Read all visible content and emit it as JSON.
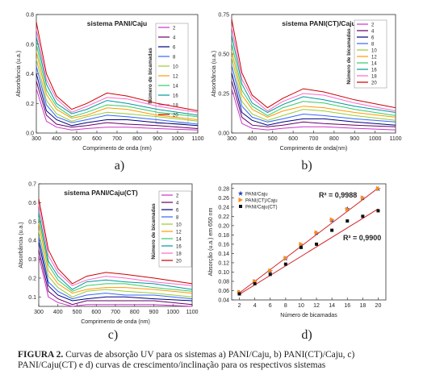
{
  "chart_data": [
    {
      "type": "line",
      "title": "sistema PANI/Caju",
      "panel_label": "a)",
      "xlabel": "Comprimento de onda (nm)",
      "ylabel": "Absorbância (u.a.)",
      "legend_title": "Número de bicamadas",
      "x": [
        300,
        350,
        400,
        475,
        550,
        650,
        750,
        900,
        1100
      ],
      "xlim": [
        300,
        1100
      ],
      "xticks": [
        300,
        400,
        500,
        600,
        700,
        800,
        900,
        1000,
        1100
      ],
      "ylim": [
        0,
        0.8
      ],
      "yticks": [
        {
          "value": 0,
          "label": "0.0"
        },
        0.2,
        0.4,
        0.6,
        0.8
      ],
      "series": [
        {
          "name": "2",
          "color": "#cc33cc",
          "values": [
            0.3,
            0.08,
            0.04,
            0.02,
            0.03,
            0.04,
            0.04,
            0.03,
            0.02
          ]
        },
        {
          "name": "4",
          "color": "#660066",
          "values": [
            0.35,
            0.12,
            0.06,
            0.04,
            0.05,
            0.07,
            0.06,
            0.05,
            0.03
          ]
        },
        {
          "name": "6",
          "color": "#000080",
          "values": [
            0.4,
            0.15,
            0.09,
            0.05,
            0.07,
            0.09,
            0.09,
            0.07,
            0.05
          ]
        },
        {
          "name": "8",
          "color": "#3366ff",
          "values": [
            0.45,
            0.19,
            0.11,
            0.07,
            0.09,
            0.12,
            0.11,
            0.09,
            0.06
          ]
        },
        {
          "name": "10",
          "color": "#99cc33",
          "values": [
            0.5,
            0.22,
            0.13,
            0.08,
            0.11,
            0.14,
            0.13,
            0.11,
            0.08
          ]
        },
        {
          "name": "12",
          "color": "#ff9900",
          "values": [
            0.55,
            0.26,
            0.16,
            0.1,
            0.12,
            0.17,
            0.16,
            0.12,
            0.09
          ]
        },
        {
          "name": "14",
          "color": "#33cc66",
          "values": [
            0.6,
            0.29,
            0.18,
            0.11,
            0.14,
            0.19,
            0.18,
            0.14,
            0.11
          ]
        },
        {
          "name": "16",
          "color": "#009999",
          "values": [
            0.65,
            0.33,
            0.2,
            0.13,
            0.16,
            0.22,
            0.2,
            0.16,
            0.12
          ]
        },
        {
          "name": "18",
          "color": "#ff66cc",
          "values": [
            0.7,
            0.36,
            0.23,
            0.14,
            0.18,
            0.24,
            0.23,
            0.18,
            0.14
          ]
        },
        {
          "name": "20",
          "color": "#cc0000",
          "values": [
            0.75,
            0.4,
            0.25,
            0.16,
            0.2,
            0.27,
            0.25,
            0.2,
            0.15
          ]
        }
      ]
    },
    {
      "type": "line",
      "title": "sistema PANI(CT)/Caju",
      "panel_label": "b)",
      "xlabel": "Comprimento de onda(nm)",
      "ylabel": "Absorbância (u.a.)",
      "legend_title": "Número de bicamadas",
      "x": [
        300,
        350,
        400,
        475,
        550,
        650,
        750,
        900,
        1100
      ],
      "xlim": [
        300,
        1100
      ],
      "xticks": [
        300,
        400,
        500,
        600,
        700,
        800,
        900,
        1000,
        1100
      ],
      "ylim": [
        0,
        0.75
      ],
      "yticks": [
        {
          "value": 0,
          "label": "0.00"
        },
        0.25,
        {
          "value": 0.5,
          "label": "0.50"
        },
        0.75
      ],
      "series": [
        {
          "name": "2",
          "color": "#cc33cc",
          "values": [
            0.28,
            0.06,
            0.03,
            0.02,
            0.03,
            0.04,
            0.04,
            0.03,
            0.02
          ]
        },
        {
          "name": "4",
          "color": "#660066",
          "values": [
            0.33,
            0.1,
            0.05,
            0.04,
            0.05,
            0.07,
            0.06,
            0.05,
            0.04
          ]
        },
        {
          "name": "6",
          "color": "#000080",
          "values": [
            0.38,
            0.13,
            0.08,
            0.05,
            0.07,
            0.09,
            0.09,
            0.07,
            0.05
          ]
        },
        {
          "name": "8",
          "color": "#3366ff",
          "values": [
            0.43,
            0.17,
            0.1,
            0.07,
            0.09,
            0.12,
            0.11,
            0.09,
            0.07
          ]
        },
        {
          "name": "10",
          "color": "#99cc33",
          "values": [
            0.48,
            0.2,
            0.12,
            0.08,
            0.11,
            0.15,
            0.14,
            0.11,
            0.08
          ]
        },
        {
          "name": "12",
          "color": "#ff9900",
          "values": [
            0.52,
            0.24,
            0.15,
            0.1,
            0.14,
            0.17,
            0.16,
            0.13,
            0.1
          ]
        },
        {
          "name": "14",
          "color": "#33cc66",
          "values": [
            0.57,
            0.27,
            0.17,
            0.11,
            0.16,
            0.2,
            0.19,
            0.15,
            0.11
          ]
        },
        {
          "name": "16",
          "color": "#009999",
          "values": [
            0.62,
            0.31,
            0.19,
            0.13,
            0.18,
            0.23,
            0.21,
            0.17,
            0.13
          ]
        },
        {
          "name": "18",
          "color": "#ff66cc",
          "values": [
            0.67,
            0.34,
            0.22,
            0.14,
            0.2,
            0.25,
            0.24,
            0.19,
            0.14
          ]
        },
        {
          "name": "20",
          "color": "#cc0000",
          "values": [
            0.72,
            0.38,
            0.24,
            0.16,
            0.22,
            0.28,
            0.26,
            0.21,
            0.16
          ]
        }
      ]
    },
    {
      "type": "line",
      "title": "sistema PANI/Caju(CT)",
      "panel_label": "c)",
      "xlabel": "Comprimento de onda (nm)",
      "ylabel": "Absorbância (u.a.)",
      "legend_title": "Número de bicamadas",
      "x": [
        300,
        350,
        400,
        475,
        550,
        650,
        750,
        900,
        1100
      ],
      "xlim": [
        300,
        1100
      ],
      "xticks": [
        300,
        400,
        500,
        600,
        700,
        800,
        900,
        1000,
        1100
      ],
      "ylim": [
        0.05,
        0.7
      ],
      "yticks": [
        0.1,
        0.2,
        0.3,
        0.4,
        0.5,
        0.6,
        0.7
      ],
      "series": [
        {
          "name": "2",
          "color": "#cc33cc",
          "values": [
            0.32,
            0.1,
            0.07,
            0.05,
            0.06,
            0.06,
            0.06,
            0.06,
            0.05
          ]
        },
        {
          "name": "4",
          "color": "#660066",
          "values": [
            0.35,
            0.13,
            0.09,
            0.06,
            0.08,
            0.08,
            0.08,
            0.08,
            0.06
          ]
        },
        {
          "name": "6",
          "color": "#000080",
          "values": [
            0.39,
            0.16,
            0.11,
            0.08,
            0.09,
            0.1,
            0.1,
            0.09,
            0.08
          ]
        },
        {
          "name": "8",
          "color": "#3366ff",
          "values": [
            0.42,
            0.18,
            0.13,
            0.09,
            0.11,
            0.12,
            0.11,
            0.11,
            0.09
          ]
        },
        {
          "name": "10",
          "color": "#99cc33",
          "values": [
            0.45,
            0.21,
            0.15,
            0.1,
            0.13,
            0.14,
            0.13,
            0.12,
            0.1
          ]
        },
        {
          "name": "12",
          "color": "#ff9900",
          "values": [
            0.49,
            0.24,
            0.17,
            0.12,
            0.14,
            0.15,
            0.15,
            0.14,
            0.12
          ]
        },
        {
          "name": "14",
          "color": "#33cc66",
          "values": [
            0.52,
            0.27,
            0.19,
            0.13,
            0.16,
            0.17,
            0.17,
            0.15,
            0.13
          ]
        },
        {
          "name": "16",
          "color": "#009999",
          "values": [
            0.55,
            0.29,
            0.21,
            0.14,
            0.18,
            0.19,
            0.18,
            0.17,
            0.14
          ]
        },
        {
          "name": "18",
          "color": "#ff66cc",
          "values": [
            0.59,
            0.32,
            0.23,
            0.16,
            0.19,
            0.21,
            0.2,
            0.18,
            0.16
          ]
        },
        {
          "name": "20",
          "color": "#cc0000",
          "values": [
            0.62,
            0.35,
            0.25,
            0.17,
            0.21,
            0.23,
            0.22,
            0.2,
            0.17
          ]
        }
      ]
    },
    {
      "type": "scatter",
      "panel_label": "d)",
      "xlabel": "Número de bicamadas",
      "ylabel": "Absorção (u.a.) em 650 nm",
      "x": [
        2,
        4,
        6,
        8,
        10,
        12,
        14,
        16,
        18,
        20
      ],
      "xlim": [
        1,
        21
      ],
      "xticks": [
        2,
        4,
        6,
        8,
        10,
        12,
        14,
        16,
        18,
        20
      ],
      "ylim": [
        0.04,
        0.29
      ],
      "yticks": [
        0.04,
        0.06,
        0.08,
        {
          "value": 0.1,
          "label": "0.10"
        },
        0.12,
        0.14,
        0.16,
        0.18,
        {
          "value": 0.2,
          "label": "0.20"
        },
        0.22,
        0.24,
        0.26,
        0.28
      ],
      "series": [
        {
          "name": "PANI/Caju",
          "color": "#1f3fbf",
          "marker": "star",
          "values": [
            0.056,
            0.079,
            0.102,
            0.129,
            0.158,
            0.184,
            0.211,
            0.236,
            0.259,
            0.279
          ]
        },
        {
          "name": "PANI(CT)/Caju",
          "color": "#ff8c1a",
          "marker": "triangle",
          "values": [
            0.057,
            0.08,
            0.103,
            0.13,
            0.16,
            0.185,
            0.213,
            0.235,
            0.26,
            0.28
          ]
        },
        {
          "name": "PANI/Caju(CT)",
          "color": "#111111",
          "marker": "square",
          "values": [
            0.053,
            0.075,
            0.095,
            0.117,
            0.153,
            0.16,
            0.19,
            0.21,
            0.22,
            0.232
          ]
        }
      ],
      "fits": [
        {
          "label": "R² = 0,9988",
          "color": "#d62728",
          "x": [
            2,
            20
          ],
          "values": [
            0.055,
            0.281
          ]
        },
        {
          "label": "R² = 0,9900",
          "color": "#d62728",
          "x": [
            2,
            20
          ],
          "values": [
            0.052,
            0.236
          ]
        }
      ]
    }
  ],
  "caption": {
    "label": "FIGURA 2.",
    "text": "Curvas de absorção UV para os sistemas a) PANI/Caju, b) PANI(CT)/Caju, c) PANI/Caju(CT) e d) curvas de crescimento/inclinação para os respectivos sistemas"
  }
}
